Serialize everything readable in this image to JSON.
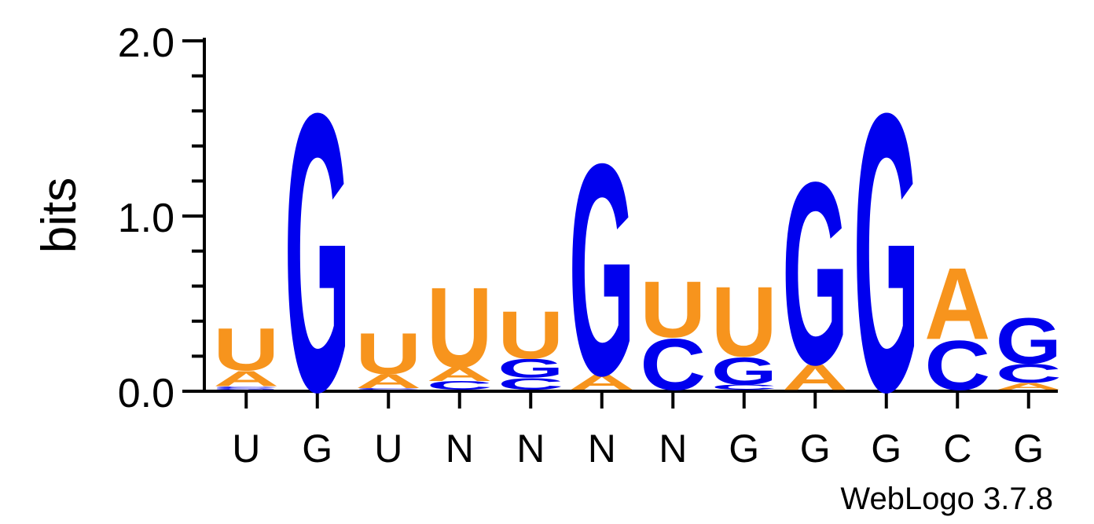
{
  "chart_data": {
    "type": "sequence-logo",
    "ylabel": "bits",
    "ylim": [
      0,
      2
    ],
    "yticks": [
      "0.0",
      "1.0",
      "2.0"
    ],
    "credit": "WebLogo 3.7.8",
    "colors": {
      "A": "#f7941d",
      "U": "#f7941d",
      "C": "#0000ee",
      "G": "#0000ee"
    },
    "positions": [
      {
        "label": "U",
        "stack": [
          [
            "G",
            0.01
          ],
          [
            "C",
            0.01
          ],
          [
            "A",
            0.09
          ],
          [
            "U",
            0.25
          ]
        ]
      },
      {
        "label": "G",
        "stack": [
          [
            "G",
            1.63
          ]
        ]
      },
      {
        "label": "U",
        "stack": [
          [
            "C",
            0.01
          ],
          [
            "A",
            0.08
          ],
          [
            "U",
            0.24
          ]
        ]
      },
      {
        "label": "N",
        "stack": [
          [
            "C",
            0.05
          ],
          [
            "A",
            0.08
          ],
          [
            "U",
            0.47
          ]
        ]
      },
      {
        "label": "N",
        "stack": [
          [
            "C",
            0.07
          ],
          [
            "G",
            0.11
          ],
          [
            "U",
            0.28
          ]
        ]
      },
      {
        "label": "N",
        "stack": [
          [
            "A",
            0.09
          ],
          [
            "G",
            1.24
          ]
        ]
      },
      {
        "label": "N",
        "stack": [
          [
            "C",
            0.3
          ],
          [
            "U",
            0.33
          ]
        ]
      },
      {
        "label": "G",
        "stack": [
          [
            "C",
            0.03
          ],
          [
            "G",
            0.16
          ],
          [
            "U",
            0.41
          ]
        ]
      },
      {
        "label": "G",
        "stack": [
          [
            "A",
            0.15
          ],
          [
            "G",
            1.07
          ]
        ]
      },
      {
        "label": "G",
        "stack": [
          [
            "G",
            1.63
          ]
        ]
      },
      {
        "label": "C",
        "stack": [
          [
            "C",
            0.29
          ],
          [
            "A",
            0.42
          ]
        ]
      },
      {
        "label": "G",
        "stack": [
          [
            "A",
            0.04
          ],
          [
            "C",
            0.11
          ],
          [
            "G",
            0.27
          ]
        ]
      }
    ]
  }
}
